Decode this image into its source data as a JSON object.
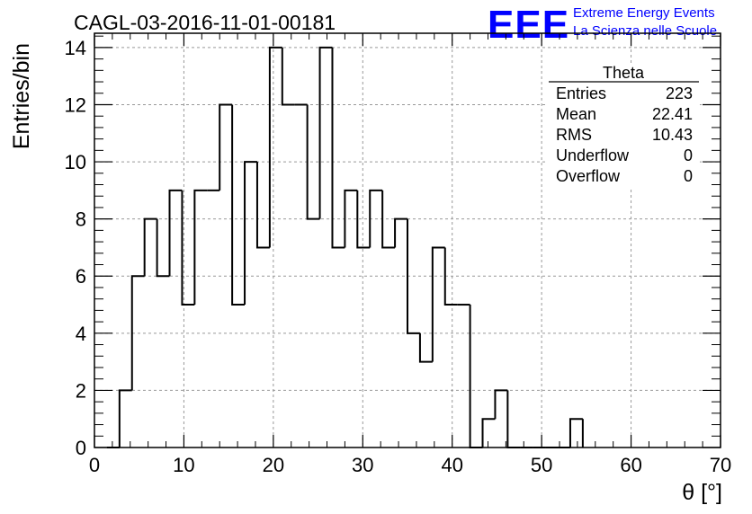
{
  "header": {
    "title": "CAGL-03-2016-11-01-00181",
    "logo": {
      "mark": "EEE",
      "line1": "Extreme Energy Events",
      "line2": "La Scienza nelle Scuole",
      "color": "#0000ff"
    }
  },
  "stats_box": {
    "name": "Theta",
    "rows": [
      {
        "label": "Entries",
        "value": "223"
      },
      {
        "label": "Mean",
        "value": "22.41"
      },
      {
        "label": "RMS",
        "value": "10.43"
      },
      {
        "label": "Underflow",
        "value": "0"
      },
      {
        "label": "Overflow",
        "value": "0"
      }
    ]
  },
  "chart_data": {
    "type": "bar",
    "style": "step-histogram",
    "title": "CAGL-03-2016-11-01-00181",
    "xlabel": "θ [°]",
    "ylabel": "Entries/bin",
    "xlim": [
      0,
      70
    ],
    "ylim": [
      0,
      14.5
    ],
    "bin_width": 1.4,
    "bin_edges": [
      1.4,
      2.8,
      4.2,
      5.6,
      7.0,
      8.4,
      9.8,
      11.2,
      12.6,
      14.0,
      15.4,
      16.8,
      18.2,
      19.6,
      21.0,
      22.4,
      23.8,
      25.2,
      26.6,
      28.0,
      29.4,
      30.8,
      32.2,
      33.6,
      35.0,
      36.4,
      37.8,
      39.2,
      40.6,
      42.0,
      43.4,
      44.8,
      46.2,
      47.6,
      49.0,
      50.4,
      51.8,
      53.2,
      54.6
    ],
    "values": [
      0,
      2,
      6,
      8,
      6,
      9,
      5,
      9,
      9,
      12,
      5,
      10,
      7,
      14,
      12,
      12,
      8,
      14,
      7,
      9,
      7,
      9,
      7,
      8,
      4,
      3,
      7,
      5,
      5,
      0,
      1,
      2,
      0,
      0,
      0,
      0,
      0,
      1
    ],
    "x_ticks": [
      "0",
      "10",
      "20",
      "30",
      "40",
      "50",
      "60",
      "70"
    ],
    "y_ticks": [
      "0",
      "2",
      "4",
      "6",
      "8",
      "10",
      "12",
      "14"
    ],
    "grid": true,
    "legend_position": "top-right",
    "line_color": "#000000"
  }
}
